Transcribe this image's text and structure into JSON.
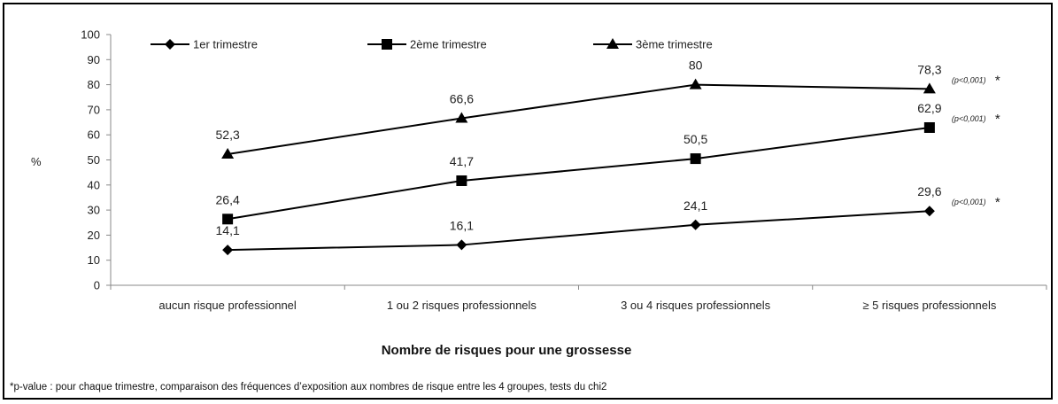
{
  "chart_data": {
    "type": "line",
    "categories": [
      "aucun risque professionnel",
      "1 ou 2 risques professionnels",
      "3 ou 4 risques professionnels",
      "≥ 5 risques professionnels"
    ],
    "series": [
      {
        "name": "1er trimestre",
        "marker": "diamond",
        "values": [
          14.1,
          16.1,
          24.1,
          29.6
        ],
        "labels": [
          "14,1",
          "16,1",
          "24,1",
          "29,6"
        ],
        "pvalue": "(p<0,001)"
      },
      {
        "name": "2ème trimestre",
        "marker": "square",
        "values": [
          26.4,
          41.7,
          50.5,
          62.9
        ],
        "labels": [
          "26,4",
          "41,7",
          "50,5",
          "62,9"
        ],
        "pvalue": "(p<0,001)"
      },
      {
        "name": "3ème trimestre",
        "marker": "triangle",
        "values": [
          52.3,
          66.6,
          80,
          78.3
        ],
        "labels": [
          "52,3",
          "66,6",
          "80",
          "78,3"
        ],
        "pvalue": "(p<0,001)"
      }
    ],
    "ylim": [
      0,
      100
    ],
    "yticks": [
      0,
      10,
      20,
      30,
      40,
      50,
      60,
      70,
      80,
      90,
      100
    ],
    "ylabel": "%",
    "xlabel": "Nombre de risques pour une grossesse",
    "legend_position": "top",
    "grid": false,
    "line_color": "#000000",
    "footnote": "*p-value : pour chaque trimestre, comparaison des fréquences d’exposition aux nombres de risque entre les 4 groupes, tests du chi2"
  }
}
